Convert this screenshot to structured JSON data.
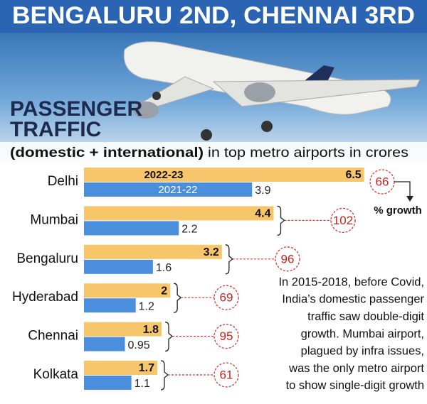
{
  "chart_data": {
    "type": "hbar",
    "title": "BENGALURU 2ND, CHENNAI 3RD",
    "subtitle": [
      "PASSENGER",
      "TRAFFIC"
    ],
    "description": [
      "(domestic + international)",
      "in top metro airports in crores"
    ],
    "categories": [
      "Delhi",
      "Mumbai",
      "Bengaluru",
      "Hyderabad",
      "Chennai",
      "Kolkata"
    ],
    "series": [
      {
        "name": "2022-23",
        "color": "#f8c66a",
        "values": [
          6.5,
          4.4,
          3.2,
          2,
          1.8,
          1.7
        ]
      },
      {
        "name": "2021-22",
        "color": "#4b8fdc",
        "values": [
          3.9,
          2.2,
          1.6,
          1.2,
          0.95,
          1.1
        ]
      }
    ],
    "xlim": [
      0,
      7
    ],
    "growth_label": "% growth",
    "growth": [
      66,
      102,
      96,
      69,
      95,
      61
    ],
    "note": [
      "In 2015-2018, before Covid,",
      "India’s domestic passenger",
      "traffic saw double-digit",
      "growth. Mumbai airport,",
      "plagued by infra issues,",
      "was the only metro airport",
      "to show single-digit growth"
    ]
  }
}
